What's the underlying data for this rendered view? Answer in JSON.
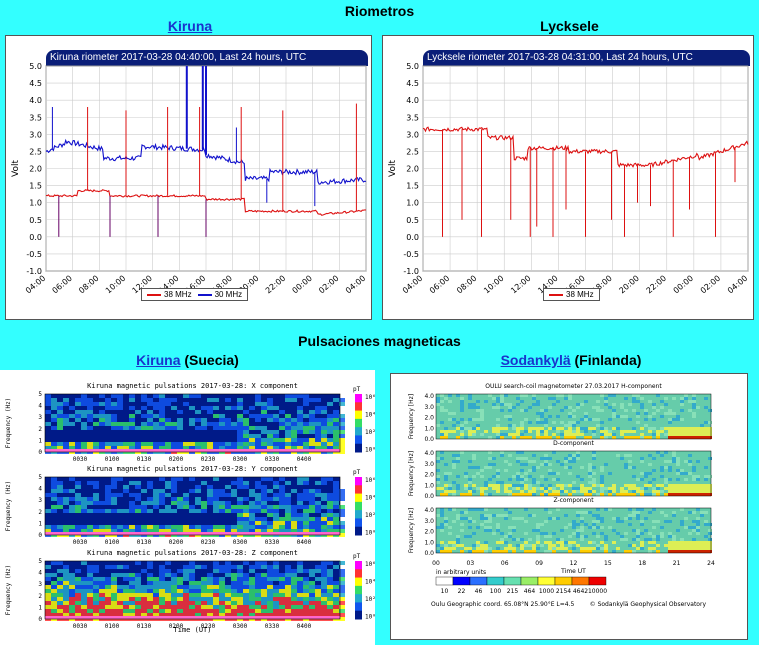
{
  "headings": {
    "riometros": "Riometros",
    "pulsaciones": "Pulsaciones magneticas"
  },
  "kiruna_rio": {
    "link": "Kiruna",
    "title": "Kiruna riometer 2017-03-28 04:40:00, Last 24 hours, UTC",
    "ylabel": "Volt",
    "legend": [
      "38 MHz",
      "30 MHz"
    ]
  },
  "lycksele_rio": {
    "heading": "Lycksele",
    "title": "Lycksele riometer 2017-03-28 04:31:00, Last 24 hours, UTC",
    "ylabel": "Volt",
    "legend": [
      "38 MHz"
    ]
  },
  "kiruna_pulse": {
    "link": "Kiruna",
    "country": " (Suecia)",
    "titles": [
      "Kiruna magnetic pulsations 2017-03-28: X component",
      "Kiruna magnetic pulsations 2017-03-28: Y component",
      "Kiruna magnetic pulsations 2017-03-28: Z component"
    ],
    "ylabel": "Frequency (Hz)",
    "xlabel": "Time (UT)",
    "unit": "pT",
    "xticks": [
      "0030",
      "0100",
      "0130",
      "0200",
      "0230",
      "0300",
      "0330",
      "0400"
    ],
    "yticks": [
      "0",
      "1",
      "2",
      "3",
      "4",
      "5"
    ],
    "cbticks": [
      "10⁶",
      "10⁴",
      "10²",
      "10⁰"
    ]
  },
  "sodankyla_pulse": {
    "link": "Sodankylä",
    "country": " (Finlanda)",
    "title": "OULU  search-coil magnetometer  27.03.2017  H-component",
    "d_title": "D-component",
    "z_title": "Z-component",
    "ylabel": "Frequency [Hz]",
    "xlabel": "Time UT",
    "xticks": [
      "00",
      "03",
      "06",
      "09",
      "12",
      "15",
      "18",
      "21",
      "24"
    ],
    "yticks": [
      "0.0",
      "1.0",
      "2.0",
      "3.0",
      "4.0"
    ],
    "units_label": "in arbitrary units",
    "scale_values": [
      "10",
      "22",
      "46",
      "100",
      "215",
      "464",
      "1000",
      "2154",
      "4642",
      "10000"
    ],
    "scale_colors": [
      "#ffffff",
      "#0000ff",
      "#2a6fff",
      "#33cccc",
      "#66e0b0",
      "#99ee66",
      "#ffff33",
      "#ffcc00",
      "#ff7700",
      "#ee0000"
    ],
    "coords": "Oulu Geographic coord. 65.08°N 25.90°E L=4.5",
    "copyright": "© Sodankylä Geophysical Observatory"
  },
  "rio_axis": {
    "yticks": [
      "5.0",
      "4.5",
      "4.0",
      "3.5",
      "3.0",
      "2.5",
      "2.0",
      "1.5",
      "1.0",
      "0.5",
      "0.0",
      "-0.5",
      "-1.0"
    ],
    "xticks": [
      "04:00",
      "06:00",
      "08:00",
      "10:00",
      "12:00",
      "14:00",
      "16:00",
      "18:00",
      "20:00",
      "22:00",
      "00:00",
      "02:00",
      "04:00"
    ]
  },
  "colors": {
    "red_series": "#dd1111",
    "blue_series": "#1111cc",
    "purple_spikes": "#660066"
  }
}
